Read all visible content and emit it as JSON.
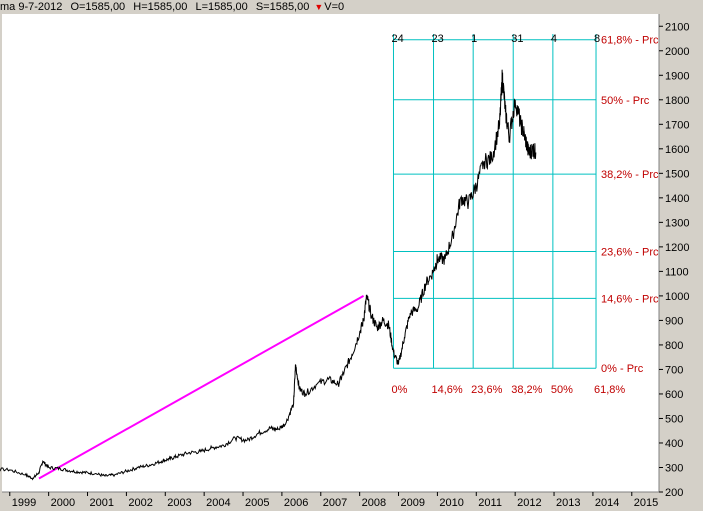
{
  "infobar": {
    "date": "ma 9-7-2012",
    "open": "O=1585,00",
    "high": "H=1585,00",
    "low": "L=1585,00",
    "close": "S=1585,00",
    "volume": "V=0"
  },
  "chart_data": {
    "type": "line",
    "ylim": [
      200,
      2150
    ],
    "y_ticks": [
      200,
      300,
      400,
      500,
      600,
      700,
      800,
      900,
      1000,
      1100,
      1200,
      1300,
      1400,
      1500,
      1600,
      1700,
      1800,
      1900,
      2000,
      2100
    ],
    "x_ticks": [
      "1999",
      "2000",
      "2001",
      "2002",
      "2003",
      "2004",
      "2005",
      "2006",
      "2007",
      "2008",
      "2009",
      "2010",
      "2011",
      "2012",
      "2013",
      "2014",
      "2015"
    ],
    "grid": false,
    "series": [
      {
        "color": "#000000",
        "x": [
          1998.0,
          1998.5,
          1999.0,
          1999.4,
          1999.6,
          1999.75,
          1999.85,
          2000.0,
          2000.3,
          2000.6,
          2000.9,
          2001.2,
          2001.45,
          2001.7,
          2002.0,
          2002.3,
          2002.6,
          2002.9,
          2003.1,
          2003.3,
          2003.6,
          2003.9,
          2004.2,
          2004.5,
          2004.8,
          2005.1,
          2005.4,
          2005.7,
          2005.9,
          2006.1,
          2006.3,
          2006.35,
          2006.45,
          2006.6,
          2006.9,
          2007.2,
          2007.45,
          2007.6,
          2007.8,
          2008.0,
          2008.1,
          2008.18,
          2008.3,
          2008.45,
          2008.6,
          2008.75,
          2008.87,
          2009.0,
          2009.15,
          2009.3,
          2009.5,
          2009.7,
          2009.9,
          2010.0,
          2010.2,
          2010.4,
          2010.6,
          2010.8,
          2011.0,
          2011.2,
          2011.4,
          2011.6,
          2011.67,
          2011.75,
          2011.85,
          2012.0,
          2012.15,
          2012.25,
          2012.35,
          2012.45,
          2012.53
        ],
        "y": [
          300,
          295,
          290,
          270,
          255,
          280,
          325,
          300,
          295,
          285,
          280,
          275,
          265,
          270,
          285,
          300,
          310,
          325,
          335,
          345,
          360,
          365,
          380,
          390,
          420,
          410,
          440,
          460,
          455,
          480,
          560,
          720,
          620,
          600,
          640,
          660,
          640,
          690,
          760,
          850,
          900,
          1000,
          920,
          870,
          900,
          880,
          770,
          720,
          830,
          930,
          950,
          1050,
          1100,
          1150,
          1150,
          1250,
          1400,
          1380,
          1450,
          1550,
          1560,
          1700,
          1900,
          1750,
          1650,
          1800,
          1700,
          1650,
          1580,
          1600,
          1585
        ]
      }
    ],
    "trendline": {
      "color": "#ff00ff",
      "x": [
        1999.75,
        2008.1
      ],
      "y": [
        255,
        1000
      ]
    },
    "fibonacci": {
      "line_color": "#00c0c0",
      "label_color": "#c00000",
      "level_labels": [
        "0% - Prc",
        "14,6% - Prc",
        "23,6% - Prc",
        "38,2% - Prc",
        "50% - Prc",
        "61,8% - Prc"
      ],
      "level_values": [
        705,
        990,
        1181,
        1497,
        1800,
        2045
      ],
      "time_labels": [
        "0%",
        "14,6%",
        "23,6%",
        "38,2%",
        "50%",
        "61,8%"
      ],
      "time_x": [
        2008.87,
        2009.9,
        2010.92,
        2011.95,
        2012.97,
        2014.08
      ],
      "top_labels": [
        "24",
        "23",
        "1",
        "31",
        "4",
        "8"
      ],
      "top_x": [
        2008.87,
        2009.9,
        2010.92,
        2011.95,
        2012.97,
        2014.08
      ]
    }
  }
}
